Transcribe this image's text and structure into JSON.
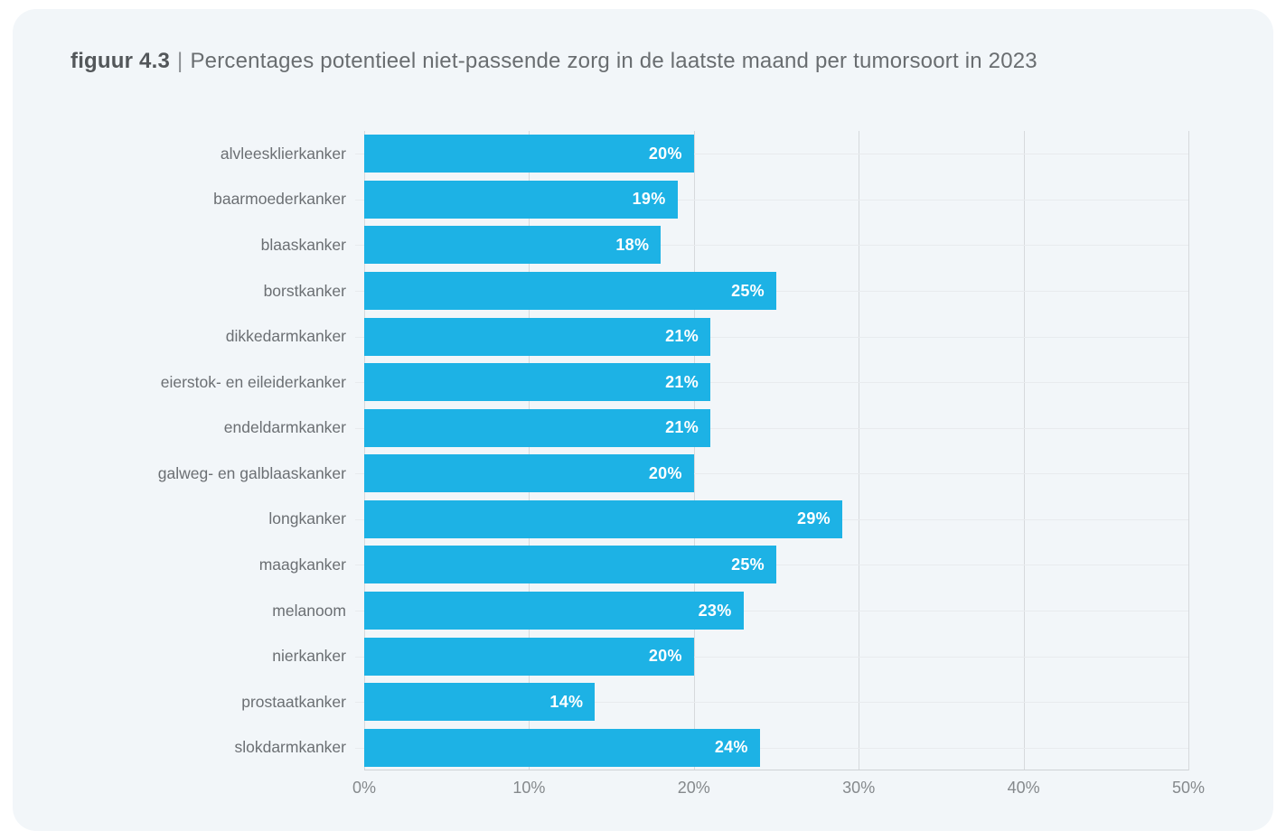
{
  "header": {
    "figure_label": "figuur 4.3",
    "separator": "|",
    "title": "Percentages potentieel niet-passende zorg in de laatste maand per tumorsoort in 2023"
  },
  "chart_data": {
    "type": "bar",
    "orientation": "horizontal",
    "title": "Percentages potentieel niet-passende zorg in de laatste maand per tumorsoort in 2023",
    "figure_label": "figuur 4.3",
    "categories": [
      "alvleesklierkanker",
      "baarmoederkanker",
      "blaaskanker",
      "borstkanker",
      "dikkedarmkanker",
      "eierstok- en eileiderkanker",
      "endeldarmkanker",
      "galweg- en galblaaskanker",
      "longkanker",
      "maagkanker",
      "melanoom",
      "nierkanker",
      "prostaatkanker",
      "slokdarmkanker"
    ],
    "values": [
      20,
      19,
      18,
      25,
      21,
      21,
      21,
      20,
      29,
      25,
      23,
      20,
      14,
      24
    ],
    "value_labels": [
      "20%",
      "19%",
      "18%",
      "25%",
      "21%",
      "21%",
      "21%",
      "20%",
      "29%",
      "25%",
      "23%",
      "20%",
      "14%",
      "24%"
    ],
    "xlabel": "",
    "ylabel": "",
    "xlim": [
      0,
      50
    ],
    "xticks": [
      0,
      10,
      20,
      30,
      40,
      50
    ],
    "xtick_labels": [
      "0%",
      "10%",
      "20%",
      "30%",
      "40%",
      "50%"
    ],
    "grid": "vertical gridlines at ticks, faint horizontal line at each row center",
    "legend": "none",
    "colors": {
      "bar": "#1DB2E5",
      "panel_background": "#F2F6F9",
      "page_background": "#FFFFFF",
      "value_label_text": "#FFFFFF"
    }
  }
}
